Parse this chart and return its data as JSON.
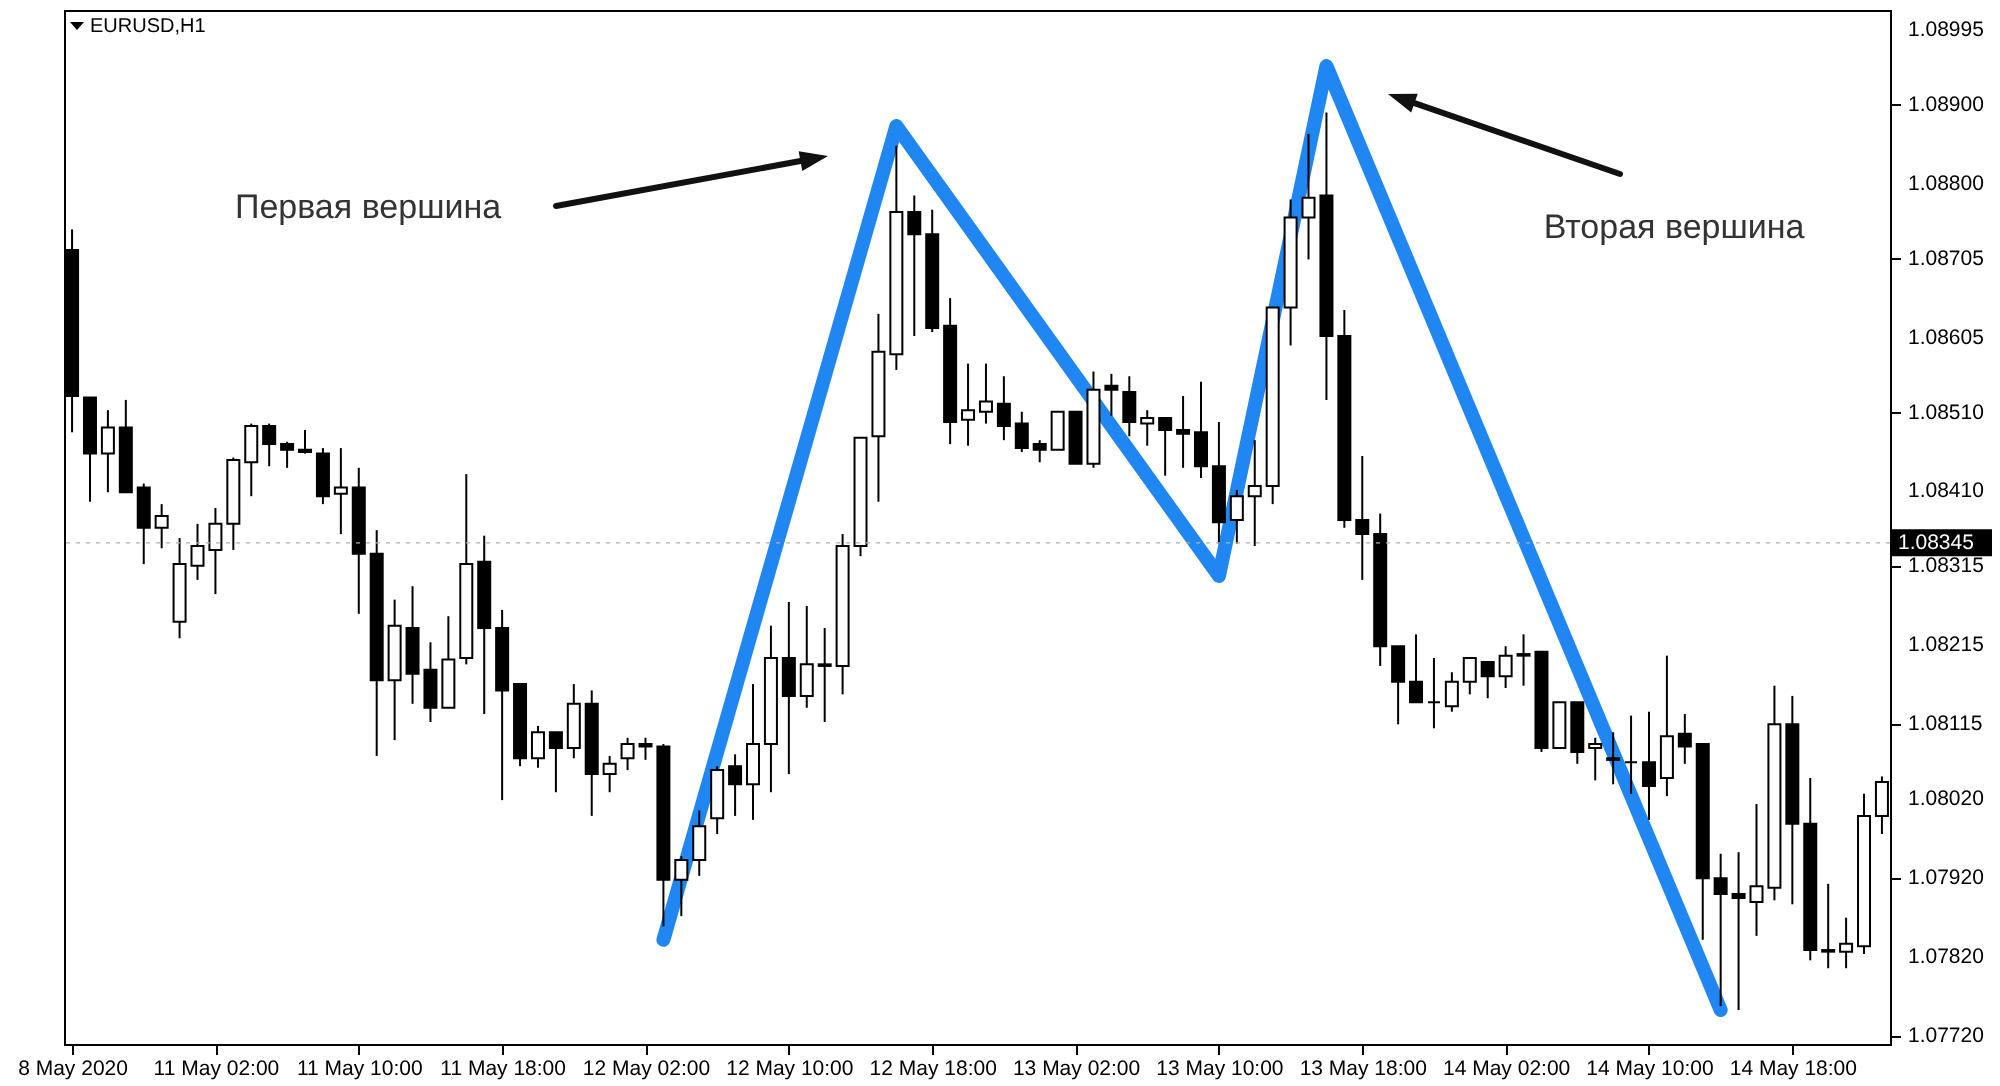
{
  "chart_data": {
    "type": "candlestick",
    "title": "EURUSD,H1",
    "categories": [
      "8 May 2020",
      null,
      null,
      null,
      null,
      null,
      null,
      null,
      "11 May 02:00",
      null,
      null,
      null,
      null,
      null,
      null,
      null,
      "11 May 10:00",
      null,
      null,
      null,
      null,
      null,
      null,
      null,
      "11 May 18:00",
      null,
      null,
      null,
      null,
      null,
      null,
      null,
      "12 May 02:00",
      null,
      null,
      null,
      null,
      null,
      null,
      null,
      "12 May 10:00",
      null,
      null,
      null,
      null,
      null,
      null,
      null,
      "12 May 18:00",
      null,
      null,
      null,
      null,
      null,
      null,
      null,
      "13 May 02:00",
      null,
      null,
      null,
      null,
      null,
      null,
      null,
      "13 May 10:00",
      null,
      null,
      null,
      null,
      null,
      null,
      null,
      "13 May 18:00",
      null,
      null,
      null,
      null,
      null,
      null,
      null,
      "14 May 02:00",
      null,
      null,
      null,
      null,
      null,
      null,
      null,
      "14 May 10:00",
      null,
      null,
      null,
      null,
      null,
      null,
      null,
      "14 May 18:00",
      null,
      null,
      null,
      null,
      null
    ],
    "ohlc": [
      [
        1.08716,
        1.08742,
        1.08485,
        1.08531
      ],
      [
        1.08529,
        1.08529,
        1.08397,
        1.08458
      ],
      [
        1.08458,
        1.08513,
        1.08409,
        1.08491
      ],
      [
        1.08491,
        1.08526,
        1.08409,
        1.08409
      ],
      [
        1.08415,
        1.0842,
        1.08318,
        1.08364
      ],
      [
        1.08364,
        1.08394,
        1.08338,
        1.08379
      ],
      [
        1.08245,
        1.08351,
        1.08224,
        1.08318
      ],
      [
        1.08316,
        1.08369,
        1.08298,
        1.08341
      ],
      [
        1.08336,
        1.08389,
        1.0828,
        1.08369
      ],
      [
        1.08369,
        1.08453,
        1.08336,
        1.0845
      ],
      [
        1.08447,
        1.08496,
        1.08404,
        1.08493
      ],
      [
        1.08493,
        1.08496,
        1.08442,
        1.0847
      ],
      [
        1.0847,
        1.08473,
        1.0844,
        1.08463
      ],
      [
        1.08463,
        1.08488,
        1.08458,
        1.0846
      ],
      [
        1.08458,
        1.08465,
        1.08394,
        1.08404
      ],
      [
        1.08407,
        1.08465,
        1.08356,
        1.08415
      ],
      [
        1.08415,
        1.0844,
        1.08255,
        1.08331
      ],
      [
        1.08331,
        1.08361,
        1.08075,
        1.08171
      ],
      [
        1.08171,
        1.08273,
        1.08095,
        1.0824
      ],
      [
        1.08237,
        1.0829,
        1.08141,
        1.08179
      ],
      [
        1.08184,
        1.08219,
        1.08118,
        1.08136
      ],
      [
        1.08136,
        1.08252,
        1.08136,
        1.08197
      ],
      [
        1.08199,
        1.08432,
        1.08191,
        1.08318
      ],
      [
        1.08321,
        1.08354,
        1.08128,
        1.08237
      ],
      [
        1.08237,
        1.0826,
        1.08019,
        1.08158
      ],
      [
        1.08166,
        1.08166,
        1.08062,
        1.08072
      ],
      [
        1.08072,
        1.08113,
        1.0806,
        1.08105
      ],
      [
        1.08105,
        1.08105,
        1.08029,
        1.08085
      ],
      [
        1.08085,
        1.08166,
        1.08072,
        1.08141
      ],
      [
        1.08141,
        1.08158,
        1.07999,
        1.08052
      ],
      [
        1.08052,
        1.08075,
        1.08029,
        1.08065
      ],
      [
        1.08072,
        1.08098,
        1.08057,
        1.0809
      ],
      [
        1.0809,
        1.08098,
        1.0807,
        1.08087
      ],
      [
        1.08087,
        1.0809,
        1.07859,
        1.07918
      ],
      [
        1.07918,
        1.07948,
        1.07872,
        1.07943
      ],
      [
        1.07943,
        1.08006,
        1.07923,
        1.07986
      ],
      [
        1.07996,
        1.08062,
        1.07976,
        1.08057
      ],
      [
        1.08062,
        1.08077,
        1.07999,
        1.08039
      ],
      [
        1.08039,
        1.08166,
        1.07994,
        1.0809
      ],
      [
        1.0809,
        1.0824,
        1.08029,
        1.08199
      ],
      [
        1.08199,
        1.0827,
        1.08052,
        1.08151
      ],
      [
        1.08151,
        1.08265,
        1.08136,
        1.08191
      ],
      [
        1.08191,
        1.08237,
        1.08118,
        1.08189
      ],
      [
        1.08189,
        1.08356,
        1.08153,
        1.08341
      ],
      [
        1.08341,
        1.08478,
        1.08328,
        1.08478
      ],
      [
        1.0848,
        1.08635,
        1.08397,
        1.08587
      ],
      [
        1.08584,
        1.08848,
        1.08564,
        1.08764
      ],
      [
        1.08764,
        1.08785,
        1.08607,
        1.08736
      ],
      [
        1.08736,
        1.08767,
        1.08612,
        1.08617
      ],
      [
        1.0862,
        1.08655,
        1.0847,
        1.08498
      ],
      [
        1.08501,
        1.08572,
        1.08468,
        1.08513
      ],
      [
        1.08511,
        1.08572,
        1.08496,
        1.08524
      ],
      [
        1.08521,
        1.08556,
        1.08475,
        1.08493
      ],
      [
        1.08496,
        1.08511,
        1.0846,
        1.08465
      ],
      [
        1.0847,
        1.08475,
        1.08447,
        1.08463
      ],
      [
        1.08463,
        1.08511,
        1.08463,
        1.08511
      ],
      [
        1.08511,
        1.08511,
        1.08445,
        1.08445
      ],
      [
        1.08445,
        1.08562,
        1.0844,
        1.08539
      ],
      [
        1.08544,
        1.08559,
        1.08506,
        1.08539
      ],
      [
        1.08536,
        1.08556,
        1.0848,
        1.08498
      ],
      [
        1.08496,
        1.08513,
        1.08468,
        1.08503
      ],
      [
        1.08503,
        1.08503,
        1.0843,
        1.08488
      ],
      [
        1.08488,
        1.08531,
        1.0844,
        1.08483
      ],
      [
        1.08485,
        1.08549,
        1.08427,
        1.08442
      ],
      [
        1.08442,
        1.08498,
        1.08344,
        1.08371
      ],
      [
        1.08374,
        1.08412,
        1.08344,
        1.08404
      ],
      [
        1.08404,
        1.08475,
        1.08341,
        1.08417
      ],
      [
        1.08417,
        1.08643,
        1.08394,
        1.08643
      ],
      [
        1.08643,
        1.0878,
        1.08595,
        1.08757
      ],
      [
        1.08757,
        1.08863,
        1.08704,
        1.08782
      ],
      [
        1.08785,
        1.0889,
        1.08526,
        1.08607
      ],
      [
        1.08607,
        1.0864,
        1.08364,
        1.08374
      ],
      [
        1.08374,
        1.08455,
        1.08298,
        1.08356
      ],
      [
        1.08356,
        1.08382,
        1.08189,
        1.08214
      ],
      [
        1.08214,
        1.08214,
        1.08115,
        1.08169
      ],
      [
        1.08169,
        1.08229,
        1.08143,
        1.08143
      ],
      [
        1.08143,
        1.08199,
        1.0811,
        1.08143
      ],
      [
        1.08138,
        1.08181,
        1.08131,
        1.08169
      ],
      [
        1.08169,
        1.08199,
        1.08153,
        1.08199
      ],
      [
        1.08194,
        1.08194,
        1.08148,
        1.08176
      ],
      [
        1.08176,
        1.08214,
        1.08161,
        1.08202
      ],
      [
        1.08202,
        1.08229,
        1.08164,
        1.08204
      ],
      [
        1.08207,
        1.08207,
        1.0808,
        1.08085
      ],
      [
        1.08085,
        1.08143,
        1.08085,
        1.08143
      ],
      [
        1.08143,
        1.08143,
        1.08065,
        1.0808
      ],
      [
        1.08085,
        1.08098,
        1.08044,
        1.0809
      ],
      [
        1.08072,
        1.08105,
        1.08039,
        1.0807
      ],
      [
        1.08067,
        1.08126,
        1.08027,
        1.08067
      ],
      [
        1.08067,
        1.08131,
        1.07994,
        1.08037
      ],
      [
        1.08047,
        1.08202,
        1.08024,
        1.081
      ],
      [
        1.08103,
        1.08128,
        1.08065,
        1.08087
      ],
      [
        1.0809,
        1.0809,
        1.07842,
        1.0792
      ],
      [
        1.0792,
        1.07951,
        1.07758,
        1.079
      ],
      [
        1.079,
        1.07953,
        1.07753,
        1.07895
      ],
      [
        1.0789,
        1.08014,
        1.07847,
        1.0791
      ],
      [
        1.07908,
        1.08164,
        1.07892,
        1.08115
      ],
      [
        1.08115,
        1.08151,
        1.07887,
        1.07989
      ],
      [
        1.07989,
        1.08047,
        1.07816,
        1.07829
      ],
      [
        1.07829,
        1.07913,
        1.07806,
        1.07827
      ],
      [
        1.07827,
        1.0787,
        1.07806,
        1.07837
      ],
      [
        1.07834,
        1.08027,
        1.07824,
        1.07999
      ],
      [
        1.07999,
        1.08049,
        1.07976,
        1.08042
      ]
    ],
    "series": [
      {
        "type": "line",
        "color": "#1f86f2",
        "values": [
          null,
          null,
          null,
          null,
          null,
          null,
          null,
          null,
          null,
          null,
          null,
          null,
          null,
          null,
          null,
          null,
          null,
          null,
          null,
          null,
          null,
          null,
          null,
          null,
          null,
          null,
          null,
          null,
          null,
          null,
          null,
          null,
          null,
          1.07842,
          null,
          null,
          null,
          null,
          null,
          null,
          null,
          null,
          null,
          null,
          null,
          null,
          1.08873,
          null,
          null,
          null,
          null,
          null,
          null,
          null,
          null,
          null,
          null,
          null,
          null,
          null,
          null,
          null,
          null,
          null,
          1.08303,
          null,
          null,
          null,
          null,
          null,
          1.08949,
          null,
          null,
          null,
          null,
          null,
          null,
          null,
          null,
          null,
          null,
          null,
          null,
          null,
          null,
          null,
          null,
          null,
          null,
          null,
          null,
          null,
          1.07753,
          null,
          null,
          null,
          null,
          null,
          null,
          null,
          null,
          null
        ]
      }
    ],
    "ylim": [
      1.0771,
      1.0902
    ],
    "yticks": [
      {
        "value": 1.0772,
        "label": "1.07720"
      },
      {
        "value": 1.0782,
        "label": "1.07820"
      },
      {
        "value": 1.0792,
        "label": "1.07920"
      },
      {
        "value": 1.0802,
        "label": "1.08020"
      },
      1.08115,
      1.08215,
      1.08315,
      {
        "value": 1.0841,
        "label": "1.08410"
      },
      {
        "value": 1.0851,
        "label": "1.08510"
      },
      1.08605,
      1.08705,
      {
        "value": 1.088,
        "label": "1.08800"
      },
      {
        "value": 1.089,
        "label": "1.08900"
      },
      1.08995
    ],
    "ref_lines": [
      {
        "axis": "y",
        "value": 1.08345,
        "label": "1.08345"
      }
    ],
    "annotations": [
      "Первая вершина",
      "Вторая вершина"
    ]
  }
}
